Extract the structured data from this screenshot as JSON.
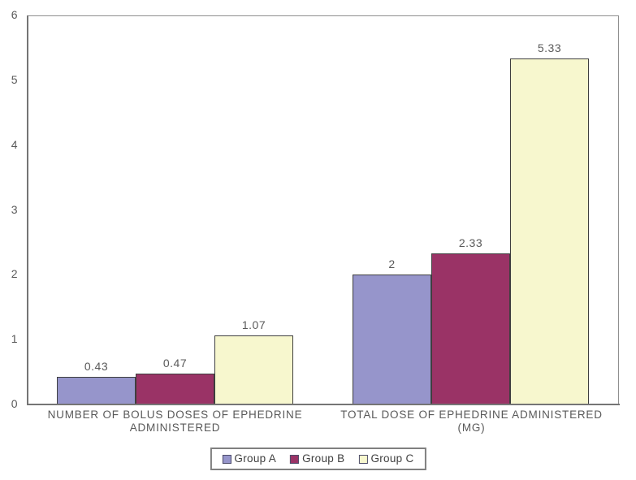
{
  "chart_data": {
    "type": "bar",
    "title": "",
    "xlabel": "",
    "ylabel": "",
    "categories": [
      "NUMBER OF BOLUS DOSES OF EPHEDRINE ADMINISTERED",
      "TOTAL DOSE OF EPHEDRINE ADMINISTERED (MG)"
    ],
    "category_lines": [
      [
        "NUMBER OF BOLUS DOSES OF EPHEDRINE",
        "ADMINISTERED"
      ],
      [
        "TOTAL DOSE OF EPHEDRINE ADMINISTERED",
        "(MG)"
      ]
    ],
    "series": [
      {
        "name": "Group A",
        "color": "#9695CB",
        "values": [
          0.43,
          2.0
        ],
        "value_labels": [
          "0.43",
          "2"
        ]
      },
      {
        "name": "Group B",
        "color": "#9A3366",
        "values": [
          0.47,
          2.33
        ],
        "value_labels": [
          "0.47",
          "2.33"
        ]
      },
      {
        "name": "Group C",
        "color": "#F7F7CE",
        "values": [
          1.07,
          5.33
        ],
        "value_labels": [
          "1.07",
          "5.33"
        ]
      }
    ],
    "ylim": [
      0,
      6
    ],
    "yticks": [
      0,
      1,
      2,
      3,
      4,
      5,
      6
    ],
    "ytick_labels": [
      "0",
      "1",
      "2",
      "3",
      "4",
      "5",
      "6"
    ],
    "grid": false,
    "legend_position": "bottom",
    "colors": {
      "background": "#FFFFFF",
      "axis": "#808080",
      "bar_border": "#3F3F3F",
      "text": "#595959"
    }
  }
}
